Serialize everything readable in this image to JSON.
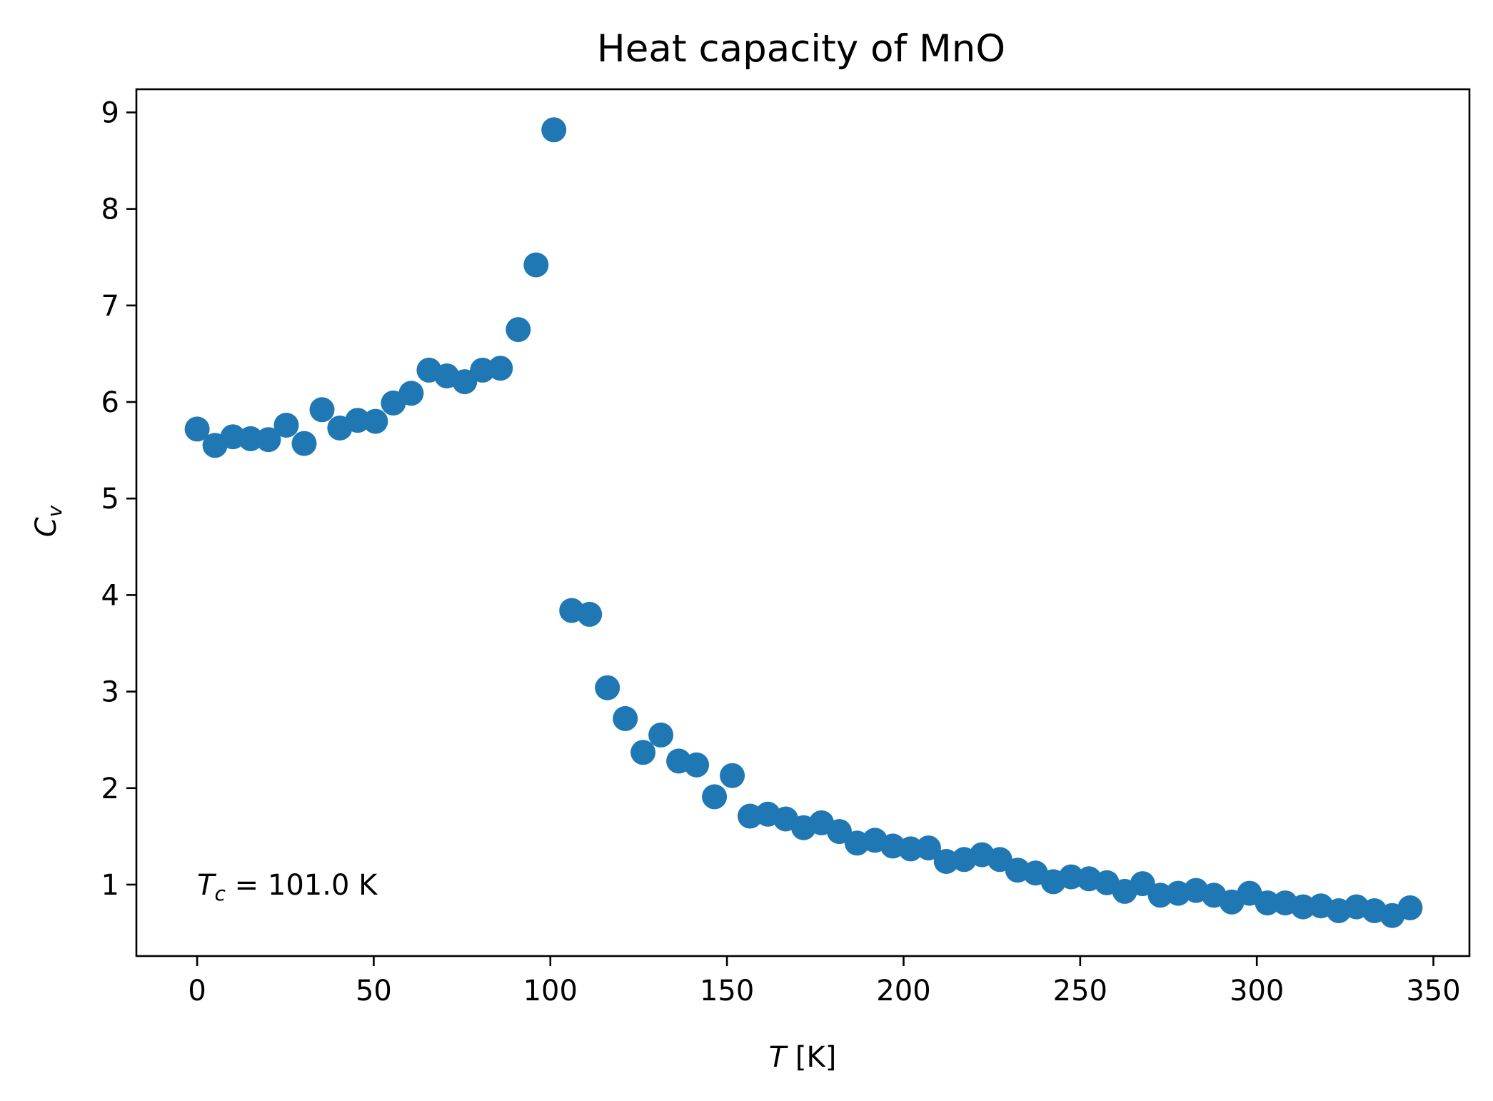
{
  "chart_data": {
    "type": "scatter",
    "title": "Heat capacity of MnO",
    "xlabel": {
      "symbol": "T",
      "unit": " [K]"
    },
    "ylabel": {
      "symbol": "C",
      "subscript": "v"
    },
    "xlim": [
      -17.2,
      360.2
    ],
    "ylim": [
      0.26,
      9.24
    ],
    "xticks": [
      0,
      50,
      100,
      150,
      200,
      250,
      300,
      350
    ],
    "yticks": [
      1,
      2,
      3,
      4,
      5,
      6,
      7,
      8,
      9
    ],
    "grid": false,
    "legend": "none",
    "annotation": {
      "symbol": "T",
      "subscript": "c",
      "text": " = 101.0 K",
      "x": 0,
      "y": 1.0
    },
    "series": [
      {
        "color": "#1f77b4",
        "x": [
          0,
          5.05,
          10.1,
          15.15,
          20.2,
          25.25,
          30.3,
          35.35,
          40.4,
          45.45,
          50.5,
          55.55,
          60.6,
          65.65,
          70.7,
          75.75,
          80.8,
          85.85,
          90.9,
          95.95,
          101.0,
          106.05,
          111.1,
          116.15,
          121.2,
          126.25,
          131.3,
          136.35,
          141.4,
          146.45,
          151.5,
          156.55,
          161.6,
          166.65,
          171.7,
          176.75,
          181.8,
          186.85,
          191.9,
          196.95,
          202.0,
          207.05,
          212.1,
          217.15,
          222.2,
          227.25,
          232.3,
          237.35,
          242.4,
          247.45,
          252.5,
          257.55,
          262.6,
          267.65,
          272.7,
          277.75,
          282.8,
          287.85,
          292.9,
          297.95,
          303.0,
          308.05,
          313.1,
          318.15,
          323.2,
          328.25,
          333.3,
          338.35,
          343.4
        ],
        "y": [
          5.72,
          5.55,
          5.64,
          5.62,
          5.61,
          5.76,
          5.57,
          5.92,
          5.73,
          5.81,
          5.8,
          5.99,
          6.09,
          6.33,
          6.27,
          6.21,
          6.33,
          6.35,
          6.75,
          7.42,
          8.82,
          3.84,
          3.8,
          3.04,
          2.72,
          2.37,
          2.55,
          2.28,
          2.24,
          1.91,
          2.13,
          1.71,
          1.73,
          1.68,
          1.59,
          1.64,
          1.55,
          1.43,
          1.46,
          1.4,
          1.37,
          1.38,
          1.24,
          1.26,
          1.31,
          1.26,
          1.15,
          1.12,
          1.03,
          1.08,
          1.06,
          1.02,
          0.93,
          1.01,
          0.89,
          0.91,
          0.94,
          0.89,
          0.82,
          0.91,
          0.81,
          0.81,
          0.77,
          0.78,
          0.73,
          0.77,
          0.73,
          0.68,
          0.76
        ]
      }
    ]
  }
}
